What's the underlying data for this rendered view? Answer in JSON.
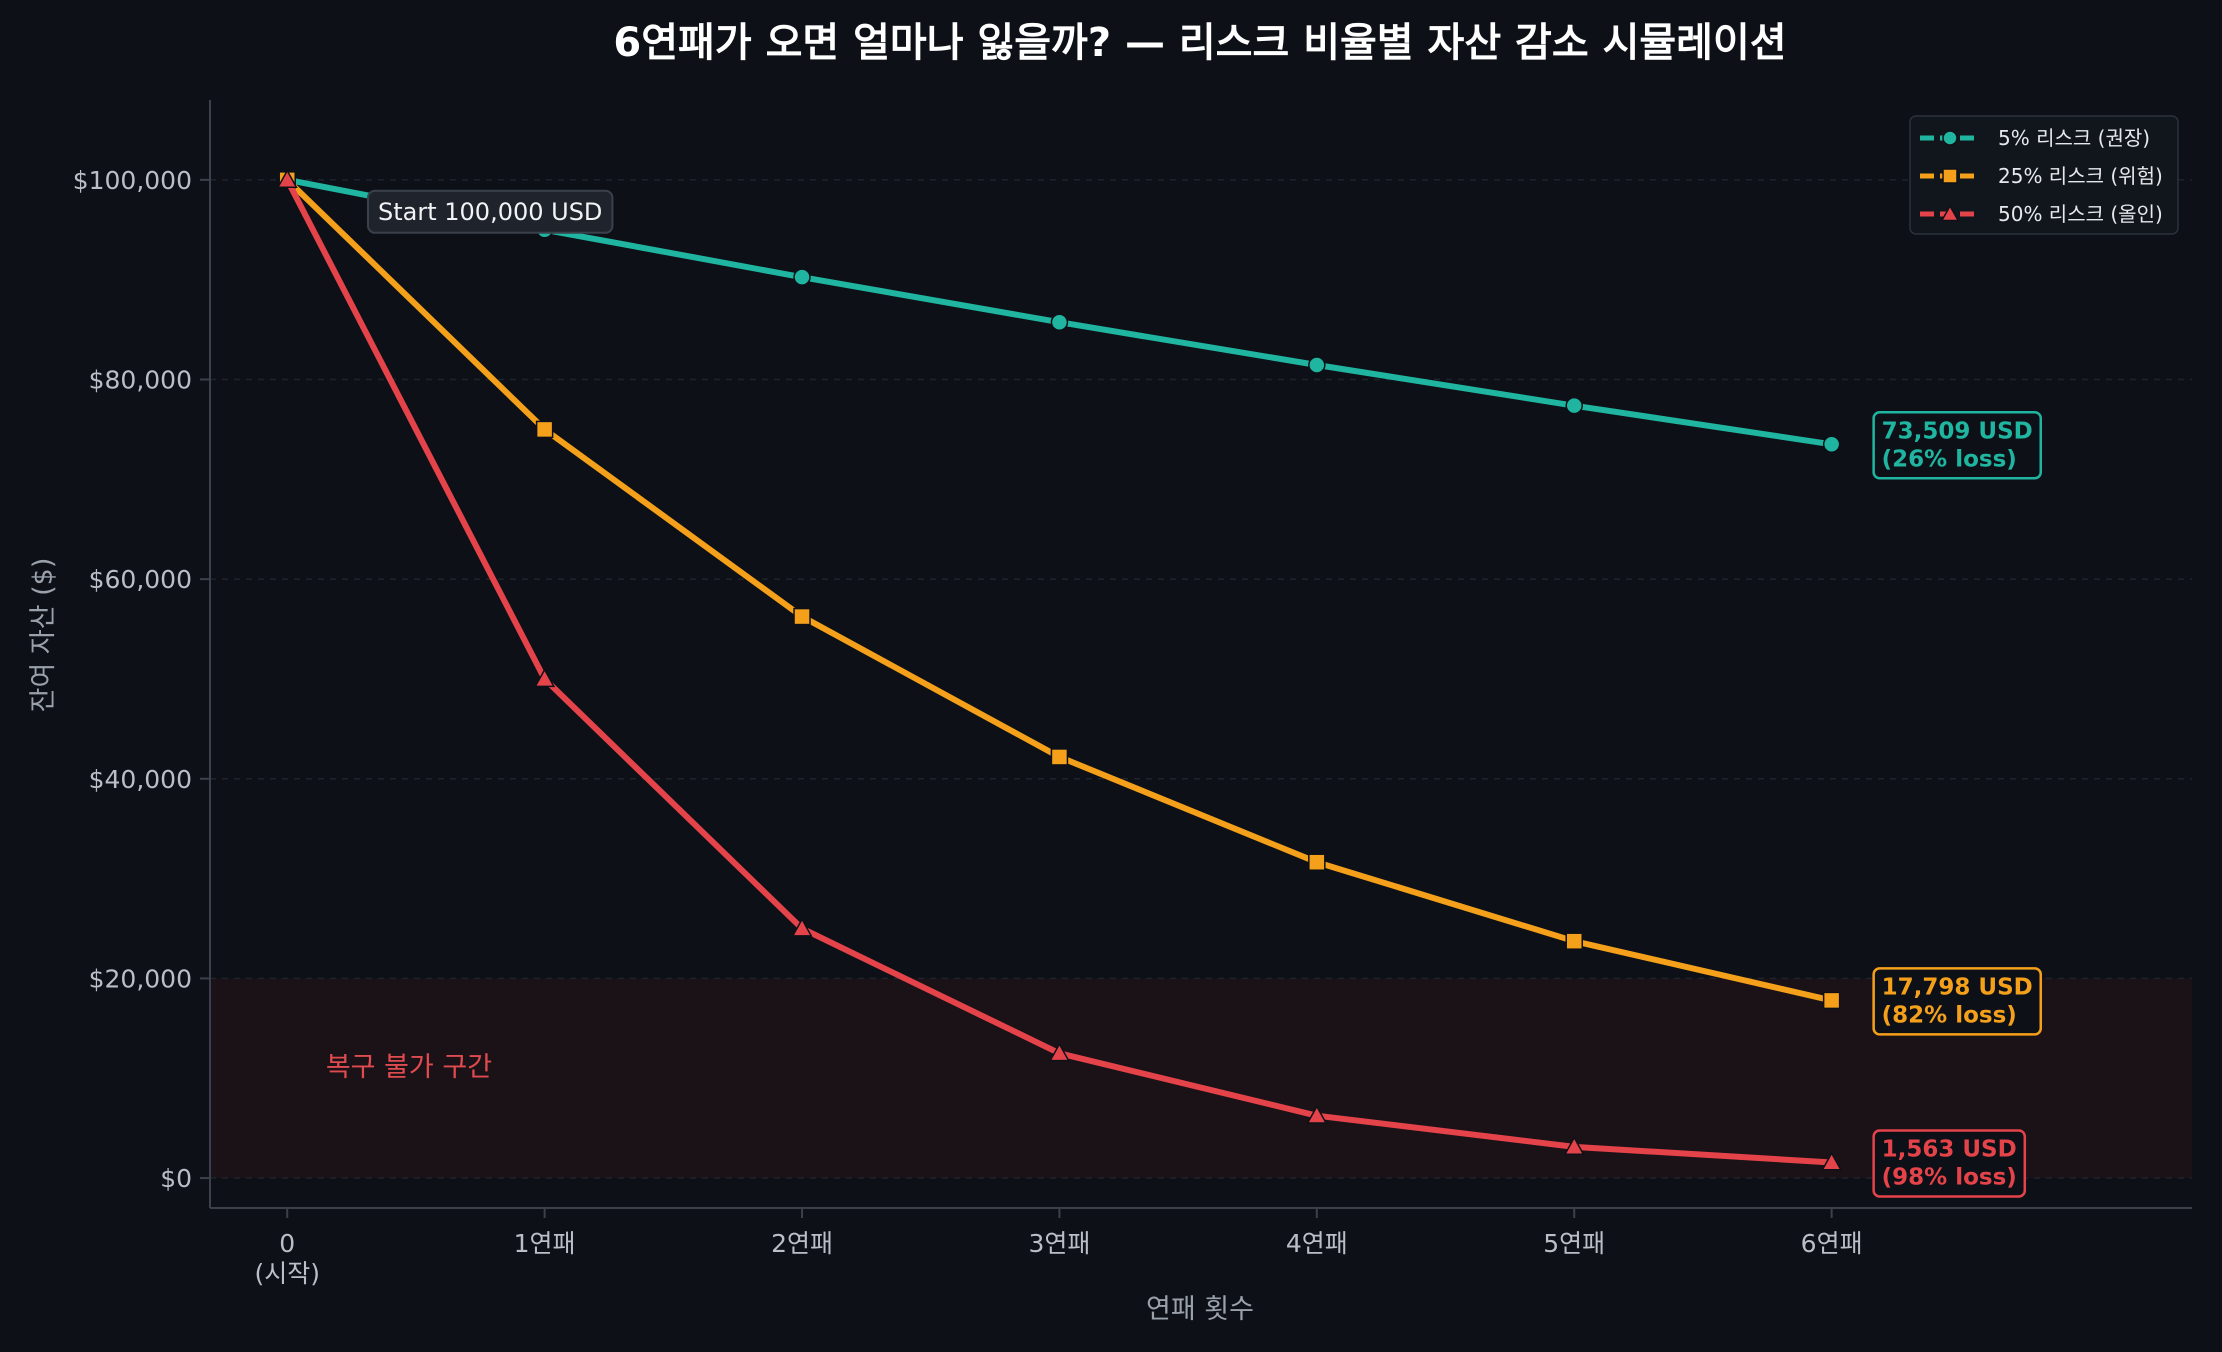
{
  "colors": {
    "background": "#0d1117",
    "grid": "#1e242c",
    "axis": "#3a414b",
    "danger_zone": "#1b1217",
    "danger_text": "#e04b4f"
  },
  "chart_data": {
    "type": "line",
    "title": "6연패가 오면 얼마나 잃을까? — 리스크 비율별 자산 감소 시뮬레이션",
    "xlabel": "연패 횟수",
    "ylabel": "잔여 자산 ($)",
    "categories": [
      "0\n(시작)",
      "1연패",
      "2연패",
      "3연패",
      "4연패",
      "5연패",
      "6연패"
    ],
    "x": [
      0,
      1,
      2,
      3,
      4,
      5,
      6
    ],
    "yticks": [
      {
        "value": 0,
        "label": "$0"
      },
      {
        "value": 20000,
        "label": "$20,000"
      },
      {
        "value": 40000,
        "label": "$40,000"
      },
      {
        "value": 60000,
        "label": "$60,000"
      },
      {
        "value": 80000,
        "label": "$80,000"
      },
      {
        "value": 100000,
        "label": "$100,000"
      }
    ],
    "ylim": [
      -3000,
      108000
    ],
    "xlim": [
      -0.3,
      7.4
    ],
    "grid": true,
    "legend_position": "top-right",
    "series": [
      {
        "name": "5% 리스크 (권장)",
        "color": "#1fb5a0",
        "marker": "circle",
        "values": [
          100000,
          95000,
          90250,
          85738,
          81451,
          77378,
          73509
        ],
        "end_label": [
          "73,509 USD",
          "(26% loss)"
        ]
      },
      {
        "name": "25% 리스크 (위험)",
        "color": "#f5a01a",
        "marker": "square",
        "values": [
          100000,
          75000,
          56250,
          42188,
          31641,
          23730,
          17798
        ],
        "end_label": [
          "17,798 USD",
          "(82% loss)"
        ]
      },
      {
        "name": "50% 리스크 (올인)",
        "color": "#e5434a",
        "marker": "triangle",
        "values": [
          100000,
          50000,
          25000,
          12500,
          6250,
          3125,
          1563
        ],
        "end_label": [
          "1,563 USD",
          "(98% loss)"
        ]
      }
    ],
    "annotations": {
      "start": "Start 100,000 USD",
      "danger_zone_label": "복구 불가 구간",
      "danger_zone_range": [
        0,
        20000
      ]
    }
  }
}
